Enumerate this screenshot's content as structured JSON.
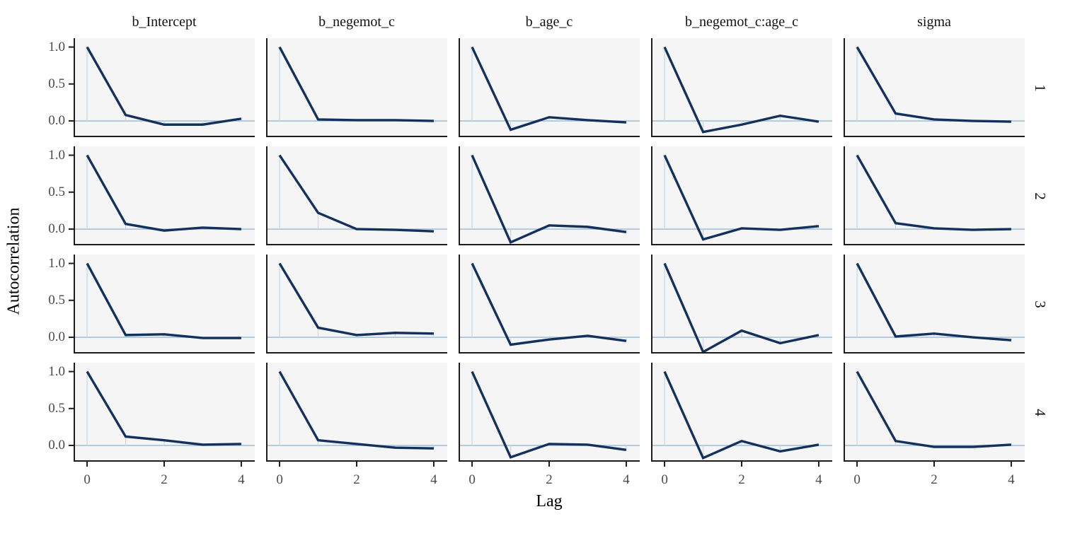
{
  "figure": {
    "x_axis_title": "Lag",
    "y_axis_title": "Autocorrelation",
    "y_tick_labels": [
      "1.0",
      "0.5",
      "0.0"
    ],
    "x_tick_labels": [
      "0",
      "2",
      "4"
    ]
  },
  "chart_data": {
    "type": "line",
    "title": "",
    "xlabel": "Lag",
    "ylabel": "Autocorrelation",
    "x": [
      0,
      1,
      2,
      3,
      4
    ],
    "xlim": [
      -0.35,
      4.35
    ],
    "ylim": [
      -0.22,
      1.12
    ],
    "y_ticks": [
      1.0,
      0.5,
      0.0
    ],
    "x_ticks": [
      0,
      2,
      4
    ],
    "grid": "off",
    "legend_position": "none",
    "facet_columns": [
      "b_Intercept",
      "b_negemot_c",
      "b_age_c",
      "b_negemot_c:age_c",
      "sigma"
    ],
    "facet_rows": [
      "1",
      "2",
      "3",
      "4"
    ],
    "series": [
      {
        "parameter": "b_Intercept",
        "chain": "1",
        "values": [
          1.0,
          0.08,
          -0.05,
          -0.05,
          0.03
        ]
      },
      {
        "parameter": "b_Intercept",
        "chain": "2",
        "values": [
          1.0,
          0.07,
          -0.02,
          0.02,
          0.0
        ]
      },
      {
        "parameter": "b_Intercept",
        "chain": "3",
        "values": [
          1.0,
          0.03,
          0.04,
          -0.01,
          -0.01
        ]
      },
      {
        "parameter": "b_Intercept",
        "chain": "4",
        "values": [
          1.0,
          0.12,
          0.07,
          0.01,
          0.02
        ]
      },
      {
        "parameter": "b_negemot_c",
        "chain": "1",
        "values": [
          1.0,
          0.02,
          0.01,
          0.01,
          0.0
        ]
      },
      {
        "parameter": "b_negemot_c",
        "chain": "2",
        "values": [
          1.0,
          0.22,
          0.0,
          -0.01,
          -0.03
        ]
      },
      {
        "parameter": "b_negemot_c",
        "chain": "3",
        "values": [
          1.0,
          0.13,
          0.03,
          0.06,
          0.05
        ]
      },
      {
        "parameter": "b_negemot_c",
        "chain": "4",
        "values": [
          1.0,
          0.07,
          0.02,
          -0.03,
          -0.04
        ]
      },
      {
        "parameter": "b_age_c",
        "chain": "1",
        "values": [
          1.0,
          -0.12,
          0.05,
          0.01,
          -0.02
        ]
      },
      {
        "parameter": "b_age_c",
        "chain": "2",
        "values": [
          1.0,
          -0.18,
          0.05,
          0.03,
          -0.04
        ]
      },
      {
        "parameter": "b_age_c",
        "chain": "3",
        "values": [
          1.0,
          -0.1,
          -0.03,
          0.02,
          -0.05
        ]
      },
      {
        "parameter": "b_age_c",
        "chain": "4",
        "values": [
          1.0,
          -0.16,
          0.02,
          0.01,
          -0.06
        ]
      },
      {
        "parameter": "b_negemot_c:age_c",
        "chain": "1",
        "values": [
          1.0,
          -0.15,
          -0.05,
          0.07,
          -0.01
        ]
      },
      {
        "parameter": "b_negemot_c:age_c",
        "chain": "2",
        "values": [
          1.0,
          -0.14,
          0.01,
          -0.01,
          0.04
        ]
      },
      {
        "parameter": "b_negemot_c:age_c",
        "chain": "3",
        "values": [
          1.0,
          -0.2,
          0.09,
          -0.08,
          0.03
        ]
      },
      {
        "parameter": "b_negemot_c:age_c",
        "chain": "4",
        "values": [
          1.0,
          -0.17,
          0.06,
          -0.08,
          0.01
        ]
      },
      {
        "parameter": "sigma",
        "chain": "1",
        "values": [
          1.0,
          0.1,
          0.02,
          0.0,
          -0.01
        ]
      },
      {
        "parameter": "sigma",
        "chain": "2",
        "values": [
          1.0,
          0.08,
          0.01,
          -0.01,
          0.0
        ]
      },
      {
        "parameter": "sigma",
        "chain": "3",
        "values": [
          1.0,
          0.01,
          0.05,
          0.0,
          -0.04
        ]
      },
      {
        "parameter": "sigma",
        "chain": "4",
        "values": [
          1.0,
          0.06,
          -0.02,
          -0.02,
          0.01
        ]
      }
    ],
    "style": {
      "line_color": "#14305c",
      "zero_line_color": "#a3c2d9",
      "lag_segment_color": "#c6dae8",
      "panel_bg": "#f5f5f6",
      "axis_color": "#1c1c1c",
      "tick_label_color": "#4b4b4b"
    }
  }
}
